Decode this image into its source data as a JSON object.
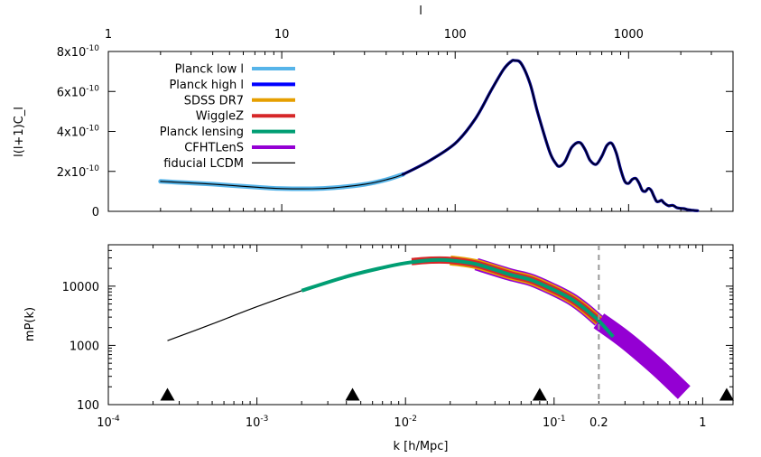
{
  "chart_data": [
    {
      "type": "line",
      "panel": "top",
      "xlabel_top": "l",
      "ylabel": "l(l+1)C_l",
      "x_scale": "log",
      "xlim": [
        1,
        4000
      ],
      "ylim": [
        0,
        8e-10
      ],
      "x_ticks": [
        {
          "value": 1,
          "label": "1"
        },
        {
          "value": 10,
          "label": "10"
        },
        {
          "value": 100,
          "label": "100"
        },
        {
          "value": 1000,
          "label": "1000"
        }
      ],
      "y_ticks": [
        {
          "value": 0,
          "label": "0"
        },
        {
          "value": 2e-10,
          "label": "2x10",
          "exp": "-10"
        },
        {
          "value": 4e-10,
          "label": "4x10",
          "exp": "-10"
        },
        {
          "value": 6e-10,
          "label": "6x10",
          "exp": "-10"
        },
        {
          "value": 8e-10,
          "label": "8x10",
          "exp": "-10"
        }
      ],
      "legend_position": "top-left",
      "series": [
        {
          "name": "Planck low l",
          "color": "#56b4e9",
          "x": [
            2,
            3,
            4,
            6,
            8,
            10,
            15,
            20,
            30,
            40,
            50
          ],
          "y": [
            1.5e-10,
            1.42e-10,
            1.36e-10,
            1.25e-10,
            1.18e-10,
            1.14e-10,
            1.13e-10,
            1.18e-10,
            1.35e-10,
            1.58e-10,
            1.85e-10
          ]
        },
        {
          "name": "Planck high l",
          "color": "#0000ff",
          "x": [
            50,
            70,
            100,
            130,
            160,
            190,
            210,
            220,
            240,
            270,
            300,
            350,
            380,
            400,
            430,
            470,
            520,
            560,
            600,
            650,
            700,
            750,
            800,
            850,
            900,
            950,
            1000,
            1050,
            1100,
            1150,
            1200,
            1250,
            1300,
            1350,
            1400,
            1450,
            1500,
            1550,
            1600,
            1700,
            1800,
            1900,
            2000,
            2100,
            2200,
            2300,
            2400,
            2500
          ],
          "y": [
            1.85e-10,
            2.5e-10,
            3.4e-10,
            4.6e-10,
            6e-10,
            7.1e-10,
            7.5e-10,
            7.55e-10,
            7.4e-10,
            6.4e-10,
            4.9e-10,
            3e-10,
            2.4e-10,
            2.25e-10,
            2.5e-10,
            3.2e-10,
            3.45e-10,
            3.1e-10,
            2.55e-10,
            2.35e-10,
            2.75e-10,
            3.3e-10,
            3.4e-10,
            2.9e-10,
            2.1e-10,
            1.5e-10,
            1.4e-10,
            1.6e-10,
            1.65e-10,
            1.4e-10,
            1.05e-10,
            1e-10,
            1.15e-10,
            1.05e-10,
            7.5e-11,
            5e-11,
            5e-11,
            5.5e-11,
            4.2e-11,
            2.8e-11,
            3e-11,
            1.8e-11,
            1.5e-11,
            1.3e-11,
            8e-12,
            6e-12,
            4e-12,
            3e-12
          ]
        },
        {
          "name": "SDSS DR7",
          "color": "#e69f00"
        },
        {
          "name": "WiggleZ",
          "color": "#d62728"
        },
        {
          "name": "Planck lensing",
          "color": "#009e73"
        },
        {
          "name": "CFHTLenS",
          "color": "#9400d3"
        },
        {
          "name": "fiducial LCDM",
          "color": "#000000",
          "x": [
            2,
            3,
            4,
            6,
            8,
            10,
            15,
            20,
            30,
            40,
            50,
            70,
            100,
            130,
            160,
            190,
            210,
            220,
            240,
            270,
            300,
            350,
            380,
            400,
            430,
            470,
            520,
            560,
            600,
            650,
            700,
            750,
            800,
            850,
            900,
            950,
            1000,
            1050,
            1100,
            1150,
            1200,
            1250,
            1300,
            1350,
            1400,
            1450,
            1500,
            1550,
            1600,
            1700,
            1800,
            1900,
            2000,
            2100,
            2200,
            2300,
            2400,
            2500
          ],
          "y": [
            1.5e-10,
            1.42e-10,
            1.36e-10,
            1.25e-10,
            1.18e-10,
            1.14e-10,
            1.13e-10,
            1.18e-10,
            1.35e-10,
            1.58e-10,
            1.85e-10,
            2.5e-10,
            3.4e-10,
            4.6e-10,
            6e-10,
            7.1e-10,
            7.5e-10,
            7.55e-10,
            7.4e-10,
            6.4e-10,
            4.9e-10,
            3e-10,
            2.4e-10,
            2.25e-10,
            2.5e-10,
            3.2e-10,
            3.45e-10,
            3.1e-10,
            2.55e-10,
            2.35e-10,
            2.75e-10,
            3.3e-10,
            3.4e-10,
            2.9e-10,
            2.1e-10,
            1.5e-10,
            1.4e-10,
            1.6e-10,
            1.65e-10,
            1.4e-10,
            1.05e-10,
            1e-10,
            1.15e-10,
            1.05e-10,
            7.5e-11,
            5e-11,
            5e-11,
            5.5e-11,
            4.2e-11,
            2.8e-11,
            3e-11,
            1.8e-11,
            1.5e-11,
            1.3e-11,
            8e-12,
            6e-12,
            4e-12,
            3e-12
          ]
        }
      ]
    },
    {
      "type": "line",
      "panel": "bottom",
      "xlabel": "k [h/Mpc]",
      "ylabel": "mP(k)",
      "x_scale": "log",
      "y_scale": "log",
      "xlim": [
        0.0001,
        1.6
      ],
      "ylim": [
        100,
        50000
      ],
      "x_ticks": [
        {
          "value": 0.0001,
          "label": "10",
          "exp": "-4"
        },
        {
          "value": 0.001,
          "label": "10",
          "exp": "-3"
        },
        {
          "value": 0.01,
          "label": "10",
          "exp": "-2"
        },
        {
          "value": 0.1,
          "label": "10",
          "exp": "-1"
        },
        {
          "value": 0.2,
          "label": "0.2"
        },
        {
          "value": 1,
          "label": "1"
        }
      ],
      "y_ticks": [
        {
          "value": 100,
          "label": "100"
        },
        {
          "value": 1000,
          "label": "1000"
        },
        {
          "value": 10000,
          "label": "10000"
        }
      ],
      "vline": {
        "x": 0.2,
        "style": "dashed",
        "color": "#999999"
      },
      "triangles": {
        "x": [
          0.00025,
          0.0044,
          0.08,
          1.45
        ],
        "y": 150
      },
      "series": [
        {
          "name": "fiducial LCDM",
          "color": "#000000",
          "x": [
            0.00025,
            0.0005,
            0.001,
            0.002
          ],
          "y": [
            1200,
            2300,
            4500,
            8400
          ]
        },
        {
          "name": "Planck lensing",
          "color": "#009e73",
          "x": [
            0.002,
            0.004,
            0.007,
            0.01,
            0.015,
            0.02,
            0.03,
            0.05,
            0.07,
            0.1,
            0.13,
            0.16,
            0.2,
            0.25
          ],
          "y": [
            8400,
            14500,
            20500,
            24500,
            27500,
            27200,
            23500,
            15800,
            12700,
            8600,
            6100,
            4200,
            2600,
            1400
          ]
        },
        {
          "name": "WiggleZ",
          "color": "#d62728",
          "x": [
            0.011,
            0.015,
            0.02,
            0.03,
            0.05,
            0.07,
            0.1,
            0.13,
            0.16,
            0.2
          ],
          "y": [
            26000,
            27500,
            27200,
            23500,
            15800,
            12700,
            8600,
            6100,
            4200,
            2600
          ]
        },
        {
          "name": "SDSS DR7",
          "color": "#e69f00",
          "x": [
            0.02,
            0.03,
            0.05,
            0.07,
            0.1,
            0.13,
            0.16,
            0.2
          ],
          "y": [
            27200,
            23500,
            15800,
            12700,
            8600,
            6100,
            4200,
            2600
          ]
        },
        {
          "name": "CFHTLenS",
          "color": "#9400d3",
          "x": [
            0.03,
            0.05,
            0.07,
            0.1,
            0.13,
            0.16,
            0.2,
            0.3,
            0.5,
            0.75
          ],
          "y": [
            23500,
            15800,
            12700,
            8600,
            6100,
            4200,
            2600,
            1250,
            420,
            160
          ]
        }
      ]
    }
  ]
}
